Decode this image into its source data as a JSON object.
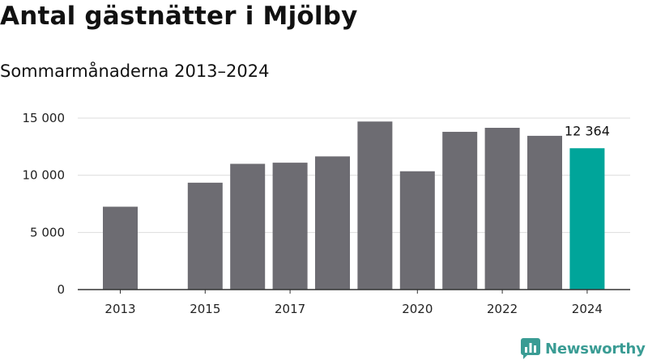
{
  "header": {
    "title": "Antal gästnätter i Mjölby",
    "subtitle": "Sommarmånaderna 2013–2024"
  },
  "brand": {
    "name": "Newsworthy",
    "icon": "newsworthy-logo-icon",
    "color": "#3a9c94"
  },
  "colors": {
    "bar": "#6d6c72",
    "highlight": "#00a59a",
    "grid": "#dddddd",
    "axis": "#333333"
  },
  "chart_data": {
    "type": "bar",
    "title": "Antal gästnätter i Mjölby",
    "subtitle": "Sommarmånaderna 2013–2024",
    "xlabel": "",
    "ylabel": "",
    "categories": [
      "2013",
      "2014",
      "2015",
      "2016",
      "2017",
      "2018",
      "2019",
      "2020",
      "2021",
      "2022",
      "2023",
      "2024"
    ],
    "x_tick_labels": [
      "2013",
      "2015",
      "2017",
      "2020",
      "2022",
      "2024"
    ],
    "values": [
      7250,
      null,
      9350,
      11000,
      11100,
      11650,
      14700,
      10350,
      13800,
      14150,
      13450,
      12364
    ],
    "highlight_index": 11,
    "data_labels": [
      {
        "index": 11,
        "text": "12 364"
      }
    ],
    "y_ticks": [
      {
        "value": 0,
        "label": "0"
      },
      {
        "value": 5000,
        "label": "5 000"
      },
      {
        "value": 10000,
        "label": "10 000"
      },
      {
        "value": 15000,
        "label": "15 000"
      }
    ],
    "ylim": [
      0,
      15000
    ],
    "grid": true,
    "legend": "none"
  }
}
